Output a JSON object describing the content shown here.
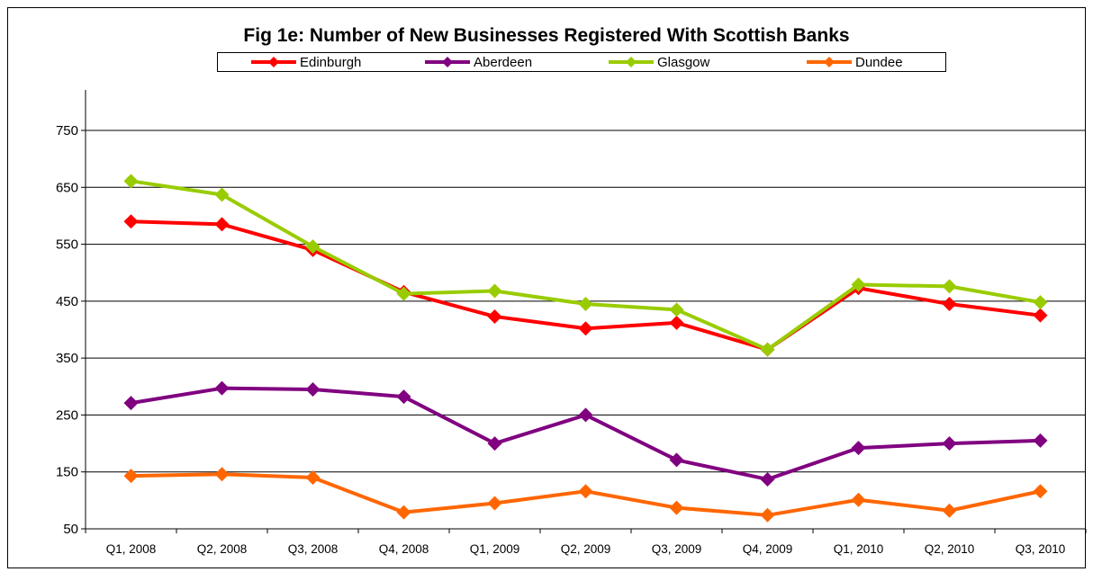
{
  "chart_data": {
    "type": "line",
    "title": "Fig 1e: Number of New Businesses Registered With Scottish Banks",
    "xlabel": "",
    "ylabel": "",
    "categories": [
      "Q1, 2008",
      "Q2, 2008",
      "Q3, 2008",
      "Q4, 2008",
      "Q1, 2009",
      "Q2, 2009",
      "Q3, 2009",
      "Q4, 2009",
      "Q1, 2010",
      "Q2, 2010",
      "Q3, 2010"
    ],
    "ylim": [
      50,
      750
    ],
    "yticks": [
      50,
      150,
      250,
      350,
      450,
      550,
      650,
      750
    ],
    "grid": true,
    "legend_position": "top",
    "series": [
      {
        "name": "Edinburgh",
        "color": "#ff0000",
        "values": [
          590,
          585,
          540,
          466,
          423,
          402,
          412,
          365,
          473,
          445,
          425
        ]
      },
      {
        "name": "Aberdeen",
        "color": "#800080",
        "values": [
          271,
          297,
          295,
          282,
          200,
          250,
          171,
          137,
          192,
          200,
          205
        ]
      },
      {
        "name": "Glasgow",
        "color": "#99cc00",
        "values": [
          661,
          637,
          546,
          463,
          468,
          445,
          435,
          365,
          479,
          476,
          448
        ]
      },
      {
        "name": "Dundee",
        "color": "#ff6600",
        "values": [
          143,
          146,
          140,
          79,
          95,
          116,
          87,
          74,
          101,
          82,
          116
        ]
      }
    ]
  }
}
